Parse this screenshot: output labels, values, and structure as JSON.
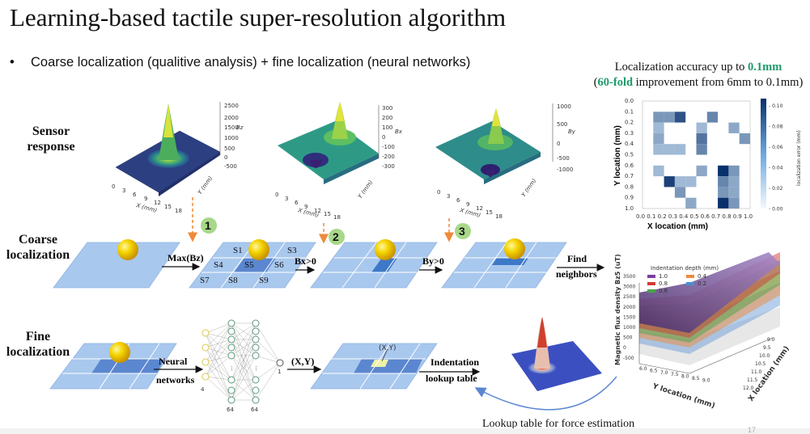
{
  "title": "Learning-based tactile super-resolution algorithm",
  "bullet": "Coarse localization (qualitive analysis) + fine localization (neural networks)",
  "row_labels": {
    "sensor": [
      "Sensor",
      "response"
    ],
    "coarse": [
      "Coarse",
      "localization"
    ],
    "fine": [
      "Fine",
      "localization"
    ]
  },
  "accuracy": {
    "line1_prefix": "Localization accuracy up to ",
    "line1_value": "0.1mm",
    "line2_open": "(",
    "line2_fold": "60-fold",
    "line2_rest": " improvement from 6mm to 0.1mm)"
  },
  "surfaces": [
    {
      "axis_label": "Bz",
      "ticks": [
        "2500",
        "2000",
        "1500",
        "1000",
        "500",
        "0",
        "-500"
      ]
    },
    {
      "axis_label": "Bx",
      "ticks": [
        "300",
        "200",
        "100",
        "0",
        "-100",
        "-200",
        "-300"
      ]
    },
    {
      "axis_label": "By",
      "ticks": [
        "1000",
        "500",
        "0",
        "-500",
        "-1000"
      ]
    }
  ],
  "surface_xticks": [
    "0",
    "3",
    "6",
    "9",
    "12",
    "15",
    "18"
  ],
  "surface_xlabel": "X (mm)",
  "surface_ylabel": "Y (mm)",
  "steps": [
    "1",
    "2",
    "3"
  ],
  "coarse_ops": [
    "Max(Bz)",
    "Bx>0",
    "By>0"
  ],
  "find_neighbors": [
    "Find",
    "neighbors"
  ],
  "grid_sections": [
    "S1",
    "S2",
    "S3",
    "S4",
    "S5",
    "S6",
    "S7",
    "S8",
    "S9"
  ],
  "neural": [
    "Neural",
    "networks"
  ],
  "nn_layer_sizes": [
    "4",
    "64",
    "64",
    "1"
  ],
  "xy_label": "(X,Y)",
  "xy_point_label": "(X,Y)",
  "indentation": [
    "Indentation",
    "lookup table"
  ],
  "bottom_caption": "Lookup table for force estimation",
  "page_number": "17",
  "heatmap": {
    "xlabel": "X location (mm)",
    "ylabel": "Y location (mm)",
    "colorbar_label": "localization error (mm)",
    "ticks": [
      "0.0",
      "0.1",
      "0.2",
      "0.3",
      "0.4",
      "0.5",
      "0.6",
      "0.7",
      "0.8",
      "0.9",
      "1.0"
    ],
    "colorbar_ticks": [
      "0.10",
      "0.08",
      "0.06",
      "0.04",
      "0.02",
      "0.00"
    ],
    "cells": [
      [
        0,
        0,
        0,
        0,
        0,
        0,
        0,
        0,
        0,
        0
      ],
      [
        0,
        0.04,
        0.04,
        0.08,
        0,
        0,
        0.05,
        0,
        0,
        0
      ],
      [
        0,
        0.02,
        0,
        0,
        0,
        0.02,
        0,
        0,
        0.03,
        0
      ],
      [
        0,
        0.03,
        0,
        0,
        0,
        0.06,
        0,
        0,
        0,
        0.04
      ],
      [
        0,
        0.02,
        0.02,
        0.02,
        0,
        0.05,
        0,
        0,
        0,
        0
      ],
      [
        0,
        0,
        0,
        0,
        0,
        0,
        0,
        0,
        0,
        0
      ],
      [
        0,
        0.02,
        0,
        0,
        0,
        0.03,
        0,
        0.1,
        0.04,
        0
      ],
      [
        0,
        0,
        0.09,
        0.02,
        0.02,
        0,
        0,
        0.05,
        0.03,
        0
      ],
      [
        0,
        0,
        0,
        0.04,
        0,
        0,
        0,
        0.04,
        0.03,
        0
      ],
      [
        0,
        0,
        0,
        0,
        0.03,
        0,
        0,
        0.1,
        0.04,
        0
      ]
    ]
  },
  "force_plot": {
    "title": "Indentation depth (mm)",
    "legend": [
      {
        "name": "1.0",
        "color": "#7b3fa0"
      },
      {
        "name": "0.8",
        "color": "#d43a36"
      },
      {
        "name": "0.6",
        "color": "#4aa34a"
      },
      {
        "name": "0.4",
        "color": "#f08a3a"
      },
      {
        "name": "0.2",
        "color": "#4a8fd0"
      }
    ],
    "zlabel": "Magnetic flux density Bz5 (uT)",
    "zticks": [
      "3500",
      "3000",
      "2500",
      "2000",
      "1500",
      "1000",
      "500",
      "0",
      "-500"
    ],
    "xlabel": "Y location (mm)",
    "xticks": [
      "6.0",
      "6.5",
      "7.0",
      "7.5",
      "8.0",
      "8.5",
      "9.0"
    ],
    "ylabel": "X location (mm)",
    "yticks": [
      "9.0",
      "9.5",
      "10.0",
      "10.5",
      "11.0",
      "11.5",
      "12.0"
    ]
  }
}
